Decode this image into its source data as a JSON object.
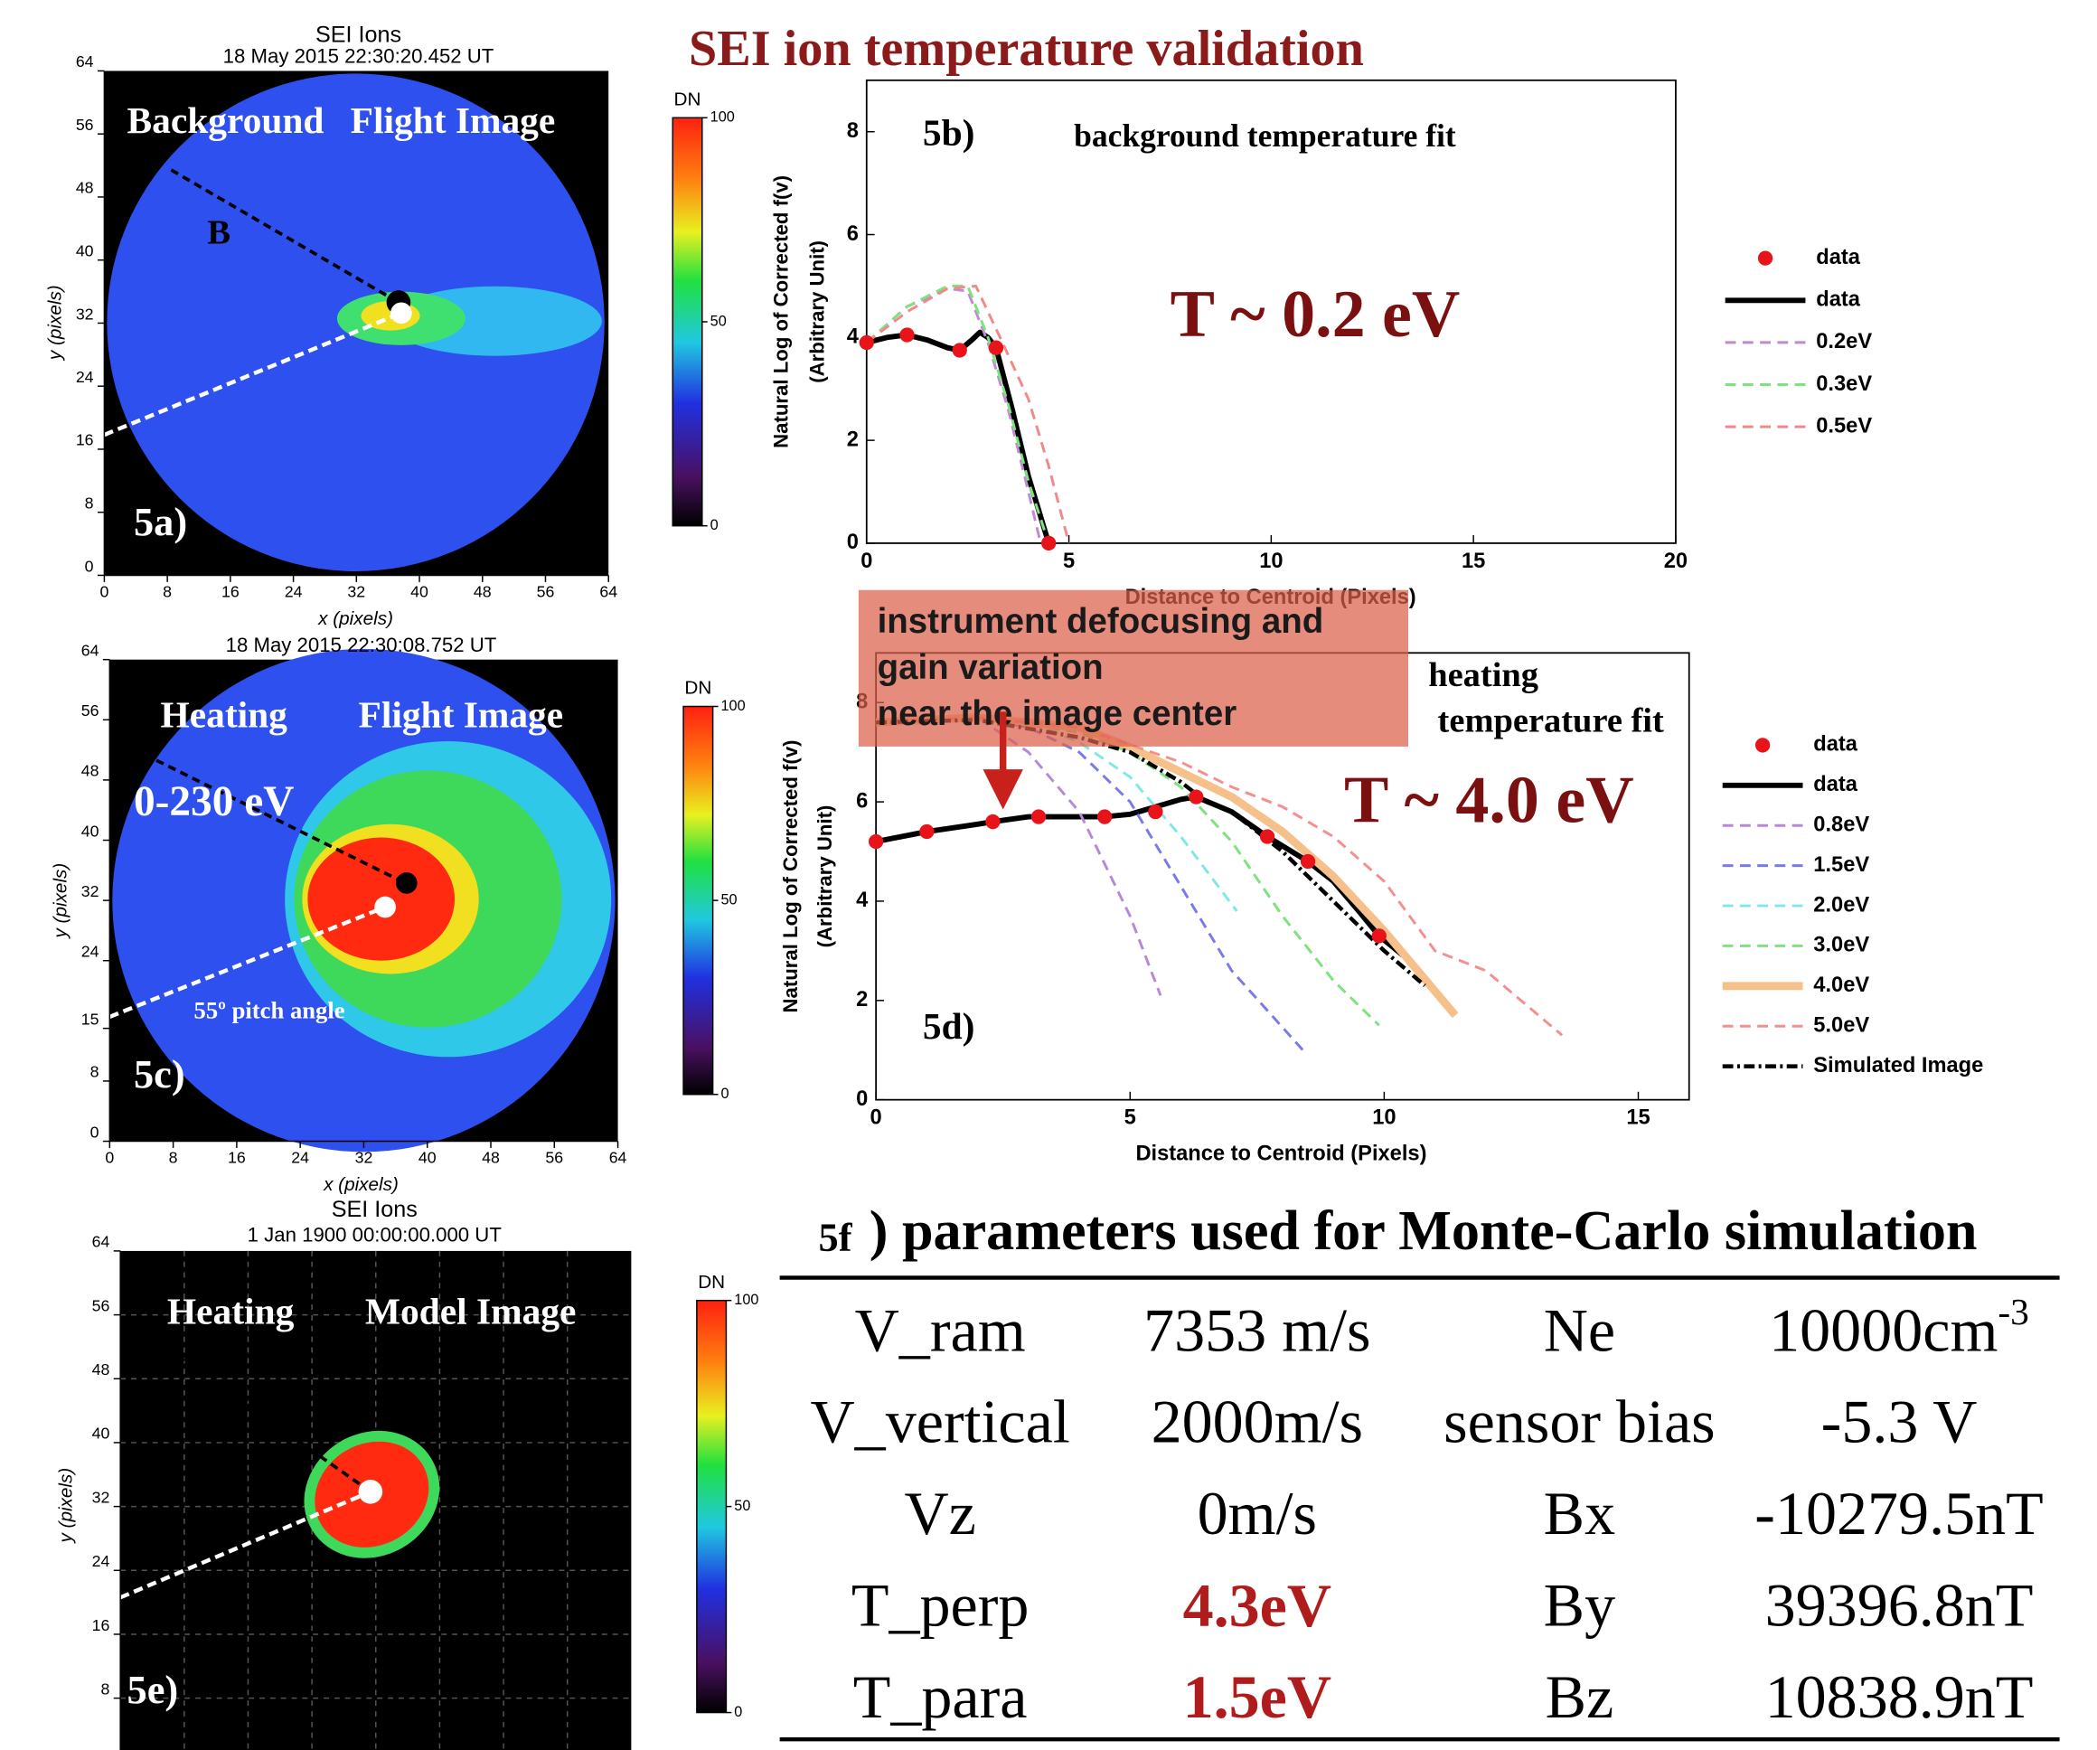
{
  "title": "SEI ion temperature validation",
  "chart_data": [
    {
      "type": "image",
      "title": "SEI Ions",
      "subtitle": "18 May 2015 22:30:20.452 UT",
      "xlabel": "x (pixels)",
      "ylabel": "y (pixels)",
      "xlim": [
        0,
        64
      ],
      "ylim": [
        0,
        64
      ],
      "xticks": [
        0,
        8,
        16,
        24,
        32,
        40,
        48,
        56,
        64
      ],
      "yticks": [
        0,
        8,
        16,
        24,
        32,
        40,
        48,
        56,
        64
      ],
      "annotations": [
        "Background",
        "Flight Image",
        "B",
        "5a)"
      ],
      "colorbar": {
        "label": "DN",
        "lim": [
          0,
          100
        ],
        "ticks": [
          0,
          50,
          100
        ]
      }
    },
    {
      "type": "line",
      "xlabel": "Distance to Centroid (Pixels)",
      "ylabel": [
        "Natural Log of Corrected f(v)",
        "(Arbitrary Unit)"
      ],
      "xlim": [
        0,
        20
      ],
      "ylim": [
        0,
        9
      ],
      "xticks": [
        0,
        5,
        10,
        15,
        20
      ],
      "yticks": [
        0,
        2,
        4,
        6,
        8
      ],
      "annotations": [
        "5b)",
        "background temperature fit",
        "T ~ 0.2 eV"
      ],
      "series": [
        {
          "name": "data",
          "color": "#e8141a",
          "dash": "none",
          "x": [
            0,
            1,
            2.3,
            3.2,
            4.5
          ],
          "values": [
            3.9,
            4.05,
            3.75,
            3.8,
            0
          ]
        },
        {
          "name": "data",
          "color": "#000000",
          "dash": "solid",
          "width": 4,
          "x": [
            0,
            0.5,
            1,
            1.5,
            2,
            2.3,
            2.6,
            2.8,
            3,
            3.2,
            3.6,
            4,
            4.5
          ],
          "values": [
            3.9,
            4.0,
            4.05,
            3.95,
            3.8,
            3.75,
            3.95,
            4.1,
            4.0,
            3.8,
            2.6,
            1.3,
            0
          ]
        },
        {
          "name": "0.2eV",
          "color": "#c08ad0",
          "dash": "dashed",
          "width": 2,
          "x": [
            0,
            1,
            2,
            2.5,
            3,
            3.5,
            4,
            4.3
          ],
          "values": [
            3.9,
            4.6,
            4.95,
            4.9,
            3.9,
            2.6,
            1.0,
            0
          ]
        },
        {
          "name": "0.3eV",
          "color": "#7ee27e",
          "dash": "dashed",
          "width": 2,
          "x": [
            0,
            1,
            2,
            2.5,
            3,
            3.5,
            4,
            4.5
          ],
          "values": [
            3.9,
            4.6,
            5.0,
            5.0,
            4.0,
            2.7,
            1.2,
            0
          ]
        },
        {
          "name": "0.5eV",
          "color": "#f08a8a",
          "dash": "dashed",
          "width": 2,
          "x": [
            0,
            1,
            2,
            2.7,
            3.3,
            4,
            4.5,
            5
          ],
          "values": [
            3.9,
            4.5,
            4.95,
            5.0,
            4.0,
            2.8,
            1.5,
            0
          ]
        }
      ]
    },
    {
      "type": "image",
      "subtitle": "18 May 2015 22:30:08.752 UT",
      "xlabel": "x (pixels)",
      "ylabel": "y (pixels)",
      "xlim": [
        0,
        64
      ],
      "ylim": [
        0,
        64
      ],
      "xticks": [
        0,
        8,
        16,
        24,
        32,
        40,
        48,
        56,
        64
      ],
      "yticks": [
        0,
        8,
        15,
        24,
        32,
        40,
        48,
        56,
        64
      ],
      "annotations": [
        "Heating",
        "Flight Image",
        "0-230 eV",
        "55º pitch angle",
        "5c)"
      ],
      "colorbar": {
        "label": "DN",
        "lim": [
          0,
          100
        ],
        "ticks": [
          0,
          50,
          100
        ]
      }
    },
    {
      "type": "line",
      "xlabel": "Distance to Centroid (Pixels)",
      "ylabel": [
        "Natural Log of Corrected f(v)",
        "(Arbitrary Unit)"
      ],
      "xlim": [
        0,
        16
      ],
      "ylim": [
        0,
        9
      ],
      "xticks": [
        0,
        5,
        10,
        15
      ],
      "yticks": [
        0,
        2,
        4,
        6,
        8
      ],
      "annotations": [
        "heating",
        "temperature fit",
        "T ~ 4.0 eV",
        "5d)"
      ],
      "series": [
        {
          "name": "data",
          "color": "#e8141a",
          "dash": "none",
          "x": [
            0,
            1,
            2.3,
            3.2,
            4.5,
            5.5,
            6.3,
            7.7,
            8.5,
            9.9
          ],
          "values": [
            5.2,
            5.4,
            5.6,
            5.7,
            5.7,
            5.8,
            6.1,
            5.3,
            4.8,
            3.3
          ]
        },
        {
          "name": "data",
          "color": "#000000",
          "dash": "solid",
          "width": 4,
          "x": [
            0,
            1,
            2,
            2.3,
            3,
            4,
            4.5,
            5,
            5.5,
            6,
            6.3,
            7,
            7.7,
            8.5,
            9,
            9.5,
            9.9,
            10.5
          ],
          "values": [
            5.2,
            5.4,
            5.55,
            5.6,
            5.7,
            5.7,
            5.7,
            5.75,
            5.9,
            6.05,
            6.1,
            5.8,
            5.3,
            4.8,
            4.4,
            3.8,
            3.3,
            2.8
          ]
        },
        {
          "name": "0.8eV",
          "color": "#b888d8",
          "dash": "dashed",
          "width": 2,
          "x": [
            0,
            1,
            2,
            3,
            4,
            5,
            5.6
          ],
          "values": [
            7.6,
            7.65,
            7.7,
            7.0,
            5.8,
            3.7,
            2.1
          ]
        },
        {
          "name": "1.5eV",
          "color": "#7a7ae8",
          "dash": "dashed",
          "width": 2,
          "x": [
            0,
            2,
            3,
            4,
            5,
            6,
            7,
            8.4
          ],
          "values": [
            7.6,
            7.7,
            7.5,
            7.0,
            6.0,
            4.3,
            2.6,
            1.0
          ]
        },
        {
          "name": "2.0eV",
          "color": "#7ee8e8",
          "dash": "dashed",
          "width": 2,
          "x": [
            0,
            2,
            3,
            4,
            5,
            6,
            7.1
          ],
          "values": [
            7.6,
            7.7,
            7.6,
            7.2,
            6.5,
            5.3,
            3.8
          ]
        },
        {
          "name": "3.0eV",
          "color": "#7ee27e",
          "dash": "dashed",
          "width": 2,
          "x": [
            0,
            2,
            4,
            5,
            6,
            7,
            8,
            9,
            9.9
          ],
          "values": [
            7.6,
            7.7,
            7.4,
            7.0,
            6.3,
            5.2,
            3.7,
            2.4,
            1.5
          ]
        },
        {
          "name": "4.0eV",
          "color": "#f5c08a",
          "dash": "solid",
          "width": 6,
          "x": [
            0,
            2,
            4,
            5,
            6,
            7,
            8,
            9,
            10,
            11.4
          ],
          "values": [
            7.6,
            7.7,
            7.5,
            7.1,
            6.6,
            6.1,
            5.4,
            4.5,
            3.4,
            1.7
          ]
        },
        {
          "name": "5.0eV",
          "color": "#f29090",
          "dash": "dashed",
          "width": 2,
          "x": [
            0,
            2,
            4,
            6,
            7,
            8,
            9,
            10,
            11,
            12,
            13.5
          ],
          "values": [
            7.6,
            7.7,
            7.5,
            6.8,
            6.3,
            5.9,
            5.3,
            4.4,
            3.0,
            2.6,
            1.3
          ]
        },
        {
          "name": "Simulated Image",
          "color": "#000000",
          "dash": "dashdot",
          "width": 3,
          "x": [
            0,
            2,
            4,
            5,
            6,
            6.5,
            7,
            8,
            9,
            10,
            10.8
          ],
          "values": [
            7.6,
            7.65,
            7.3,
            7.0,
            6.4,
            6.0,
            5.8,
            5.0,
            4.0,
            3.0,
            2.3
          ]
        }
      ]
    },
    {
      "type": "image",
      "title": "SEI Ions",
      "subtitle": "1 Jan 1900 00:00:00.000 UT",
      "ylabel": "y (pixels)",
      "xlim": [
        0,
        64
      ],
      "ylim": [
        0,
        64
      ],
      "yticks": [
        8,
        16,
        24,
        32,
        40,
        48,
        56,
        64
      ],
      "annotations": [
        "Heating",
        "Model Image",
        "5e)"
      ],
      "colorbar": {
        "label": "DN",
        "lim": [
          0,
          100
        ],
        "ticks": [
          0,
          50,
          100
        ]
      }
    }
  ],
  "callout": {
    "lines": [
      "instrument defocusing and",
      "gain variation",
      "near the image center"
    ]
  },
  "table": {
    "label": "5f",
    "title": ") parameters used for Monte-Carlo simulation",
    "rows": [
      [
        "V_ram",
        "7353 m/s",
        "Ne",
        {
          "text": "10000cm",
          "sup": "-3"
        }
      ],
      [
        "V_vertical",
        "2000m/s",
        "sensor bias",
        "-5.3 V"
      ],
      [
        "Vz",
        "0m/s",
        "Bx",
        "-10279.5nT"
      ],
      [
        "T_perp",
        {
          "text": "4.3eV",
          "color": "#b01c1c"
        },
        "By",
        "39396.8nT"
      ],
      [
        "T_para",
        {
          "text": "1.5eV",
          "color": "#b01c1c"
        },
        "Bz",
        "10838.9nT"
      ]
    ]
  }
}
